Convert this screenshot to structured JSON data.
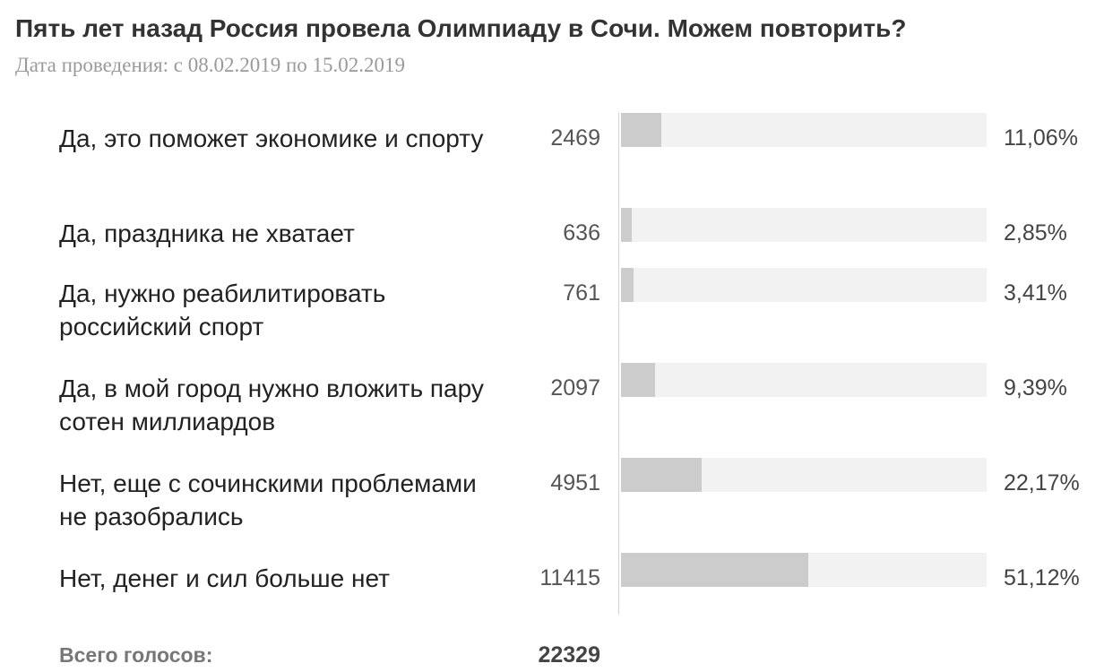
{
  "poll": {
    "title": "Пять лет назад Россия провела Олимпиаду в Сочи. Можем повторить?",
    "dates": "Дата проведения: с 08.02.2019 по 15.02.2019",
    "total_label": "Всего голосов:",
    "total_value": "22329"
  },
  "chart_data": {
    "type": "bar",
    "orientation": "horizontal",
    "categories": [
      "Да, это поможет экономике и спорту",
      "Да, праздника не хватает",
      "Да, нужно реабилитировать российский спорт",
      "Да, в мой город нужно вложить пару сотен миллиардов",
      "Нет, еще с сочинскими проблемами не разобрались",
      "Нет, денег и сил больше нет"
    ],
    "series": [
      {
        "values": [
          2469,
          636,
          761,
          2097,
          4951,
          11415
        ]
      }
    ],
    "percent_labels": [
      "11,06%",
      "2,85%",
      "3,41%",
      "9,39%",
      "22,17%",
      "51,12%"
    ],
    "percent_values": [
      11.06,
      2.85,
      3.41,
      9.39,
      22.17,
      51.12
    ],
    "count_labels": [
      "2469",
      "636",
      "761",
      "2097",
      "4951",
      "11415"
    ],
    "xlim": [
      0,
      100
    ],
    "grid": false,
    "colors": {
      "bar_fill": "#cccccc",
      "bar_track": "#f2f2f2"
    }
  }
}
